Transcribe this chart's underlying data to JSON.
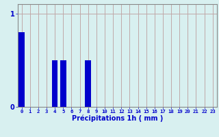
{
  "hours": [
    0,
    1,
    2,
    3,
    4,
    5,
    6,
    7,
    8,
    9,
    10,
    11,
    12,
    13,
    14,
    15,
    16,
    17,
    18,
    19,
    20,
    21,
    22,
    23
  ],
  "values": [
    0.8,
    0.0,
    0.0,
    0.0,
    0.5,
    0.5,
    0.0,
    0.0,
    0.5,
    0.0,
    0.0,
    0.0,
    0.0,
    0.0,
    0.0,
    0.0,
    0.0,
    0.0,
    0.0,
    0.0,
    0.0,
    0.0,
    0.0,
    0.0
  ],
  "bar_color": "#0000cc",
  "background_color": "#d8f0f0",
  "grid_color": "#c0a8a8",
  "xlabel": "Précipitations 1h ( mm )",
  "ylim": [
    0,
    1.1
  ],
  "yticks": [
    0,
    1
  ],
  "xlim": [
    -0.5,
    23.5
  ],
  "tick_color": "#0000cc",
  "xlabel_color": "#0000cc",
  "axis_color": "#888888"
}
